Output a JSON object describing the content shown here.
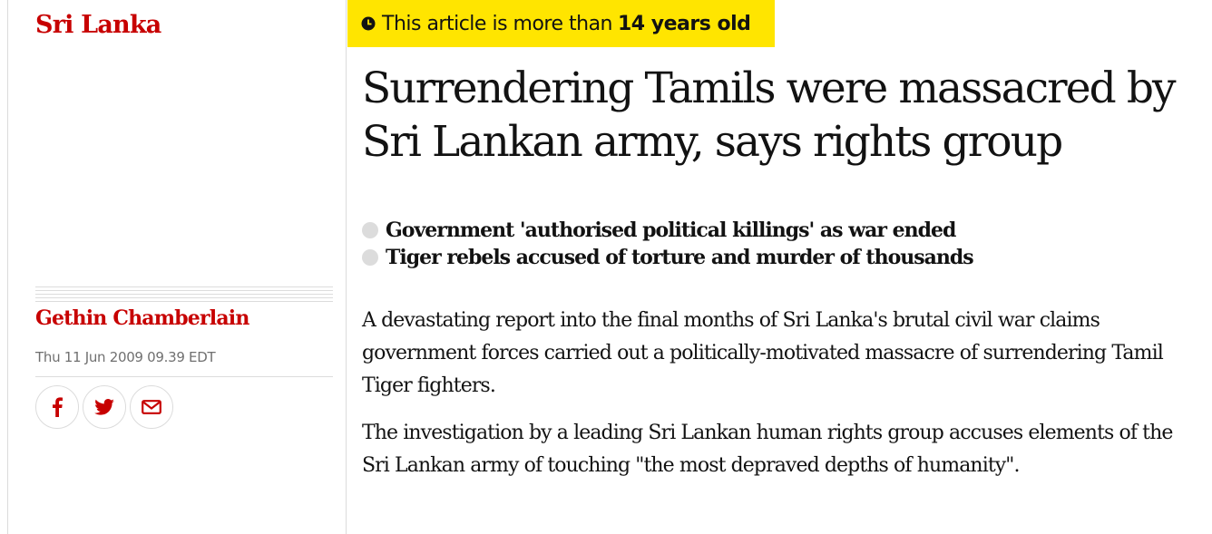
{
  "section": {
    "label": "Sri Lanka"
  },
  "byline": {
    "author": "Gethin Chamberlain",
    "date": "Thu 11 Jun 2009 09.39 EDT"
  },
  "share": [
    {
      "name": "facebook-share-button",
      "icon": "facebook-icon"
    },
    {
      "name": "twitter-share-button",
      "icon": "twitter-icon"
    },
    {
      "name": "email-share-button",
      "icon": "email-icon"
    }
  ],
  "age_warning": {
    "prefix": "This article is more than",
    "age": "14 years old",
    "icon": "clock-icon",
    "background": "#ffe500"
  },
  "article": {
    "headline": "Surrendering Tamils were massacred by Sri Lankan army, says rights group",
    "standfirst": [
      "Government 'authorised political killings' as war ended",
      "Tiger rebels accused of torture and murder of thousands"
    ],
    "paragraphs": [
      "A devastating report into the final months of Sri Lanka's brutal civil war claims government forces carried out a politically-motivated massacre of surrendering Tamil Tiger fighters.",
      "The investigation by a leading Sri Lankan human rights group accuses elements of the Sri Lankan army of touching \"the most depraved depths of humanity\"."
    ]
  },
  "colors": {
    "accent": "#c70000",
    "text": "#121212",
    "muted": "#707070",
    "rule": "#dcdcdc"
  }
}
